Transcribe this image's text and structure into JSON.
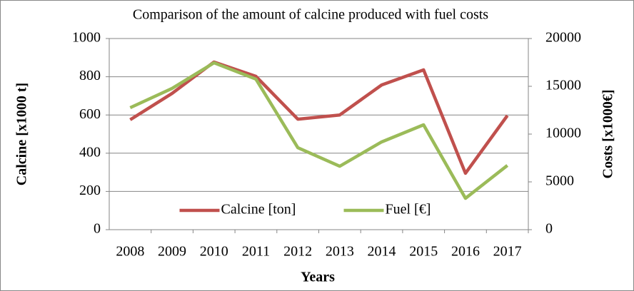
{
  "chart_data": {
    "type": "line",
    "title": "Comparison of the amount of calcine produced with fuel costs",
    "xlabel": "Years",
    "ylabel": "Calcine [x1000 t]",
    "y2label": "Costs [x1000€]",
    "categories": [
      "2008",
      "2009",
      "2010",
      "2011",
      "2012",
      "2013",
      "2014",
      "2015",
      "2016",
      "2017"
    ],
    "series": [
      {
        "name": "Calcine [ton]",
        "color": "#c0504d",
        "values": [
          575,
          713,
          877,
          802,
          578,
          600,
          757,
          836,
          295,
          597
        ]
      },
      {
        "name": "Fuel [€]",
        "color": "#9bbb59",
        "axis": "y2",
        "values": [
          12760,
          14780,
          17460,
          15750,
          8580,
          6640,
          9180,
          10970,
          3280,
          6720
        ]
      }
    ],
    "ylim": [
      0,
      1000
    ],
    "yticks": [
      0,
      200,
      400,
      600,
      800,
      1000
    ],
    "y2lim": [
      0,
      20000
    ],
    "y2ticks": [
      0,
      5000,
      10000,
      15000,
      20000
    ],
    "grid": true,
    "legend": "lower center"
  }
}
